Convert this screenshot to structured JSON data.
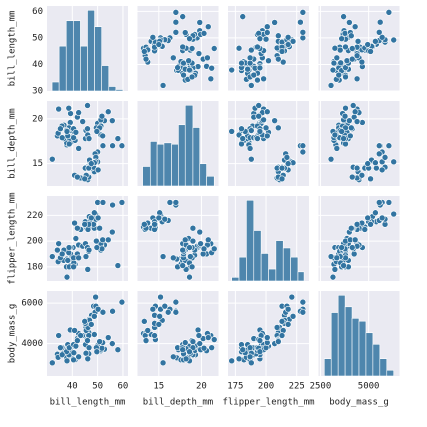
{
  "chart_data": {
    "type": "pairplot",
    "variables": [
      "bill_length_mm",
      "bill_depth_mm",
      "flipper_length_mm",
      "body_mass_g"
    ],
    "lims": [
      [
        30,
        62
      ],
      [
        12.5,
        22
      ],
      [
        169,
        235
      ],
      [
        2400,
        6600
      ]
    ],
    "xticks": [
      [
        40,
        50,
        60
      ],
      [
        15,
        20
      ],
      [
        175,
        200,
        225
      ],
      [
        2500,
        5000
      ]
    ],
    "yticks": [
      [
        30,
        40,
        50,
        60
      ],
      [
        15,
        20
      ],
      [
        180,
        200,
        220
      ],
      [
        4000,
        6000
      ]
    ],
    "color": "#3274a1",
    "grid": true,
    "histograms": [
      {
        "bins": [
          32,
          34.8,
          37.6,
          40.4,
          43.2,
          46,
          48.8,
          51.6,
          54.4,
          57.2,
          60
        ],
        "counts": [
          6,
          30,
          47,
          47,
          30,
          54,
          43,
          17,
          3,
          1
        ]
      },
      {
        "bins": [
          13.1,
          14,
          14.8,
          15.6,
          16.5,
          17.3,
          18.1,
          19,
          19.8,
          20.6,
          21.5
        ],
        "counts": [
          14,
          32,
          30,
          31,
          30,
          44,
          58,
          42,
          16,
          7
        ]
      },
      {
        "bins": [
          172,
          178,
          184,
          190,
          196,
          202,
          208,
          214,
          220,
          226,
          231
        ],
        "counts": [
          4,
          26,
          88,
          55,
          30,
          13,
          44,
          36,
          26,
          10
        ]
      },
      {
        "bins": [
          2700,
          3060,
          3420,
          3780,
          4140,
          4500,
          4860,
          5220,
          5580,
          5940,
          6300
        ],
        "counts": [
          12,
          44,
          56,
          48,
          40,
          38,
          30,
          22,
          12,
          4
        ]
      }
    ],
    "observations": [
      [
        39.1,
        18.7,
        181,
        3750
      ],
      [
        39.5,
        17.4,
        186,
        3800
      ],
      [
        40.3,
        18,
        195,
        3250
      ],
      [
        36.7,
        19.3,
        193,
        3450
      ],
      [
        39.3,
        20.6,
        190,
        3650
      ],
      [
        38.9,
        17.8,
        181,
        3625
      ],
      [
        39.2,
        19.6,
        195,
        4675
      ],
      [
        34.1,
        18.1,
        193,
        3475
      ],
      [
        42,
        20.2,
        190,
        4250
      ],
      [
        37.8,
        17.1,
        186,
        3300
      ],
      [
        37.8,
        17.3,
        180,
        3700
      ],
      [
        41.1,
        17.6,
        182,
        3200
      ],
      [
        38.6,
        21.2,
        191,
        3800
      ],
      [
        34.6,
        21.1,
        198,
        4400
      ],
      [
        36.6,
        17.8,
        185,
        3700
      ],
      [
        38.7,
        19,
        195,
        3450
      ],
      [
        42.5,
        20.7,
        197,
        4500
      ],
      [
        34.4,
        18.4,
        184,
        3325
      ],
      [
        46,
        21.5,
        194,
        4200
      ],
      [
        37.7,
        18.7,
        180,
        3600
      ],
      [
        35.9,
        19.2,
        189,
        3800
      ],
      [
        38.2,
        18.1,
        185,
        3950
      ],
      [
        38.8,
        17.2,
        180,
        3800
      ],
      [
        35.3,
        18.9,
        187,
        3800
      ],
      [
        40.6,
        18.6,
        183,
        3550
      ],
      [
        40.5,
        17.9,
        187,
        3200
      ],
      [
        37.9,
        18.6,
        172,
        3150
      ],
      [
        40.5,
        18.9,
        180,
        3950
      ],
      [
        32.1,
        15.5,
        188,
        3050
      ],
      [
        41.4,
        18.5,
        202,
        3875
      ],
      [
        44.1,
        19.7,
        196,
        4400
      ],
      [
        36,
        17.9,
        190,
        3450
      ],
      [
        46.1,
        13.2,
        211,
        4500
      ],
      [
        50,
        16.3,
        230,
        5700
      ],
      [
        48.7,
        14.1,
        210,
        4450
      ],
      [
        50,
        15.2,
        218,
        5700
      ],
      [
        47.6,
        14.5,
        215,
        5400
      ],
      [
        46.5,
        13.5,
        210,
        4550
      ],
      [
        45.4,
        14.6,
        211,
        4800
      ],
      [
        46.7,
        15.3,
        219,
        5200
      ],
      [
        43.3,
        13.4,
        209,
        4400
      ],
      [
        46.8,
        15.4,
        215,
        5150
      ],
      [
        40.9,
        13.7,
        214,
        4650
      ],
      [
        49,
        16.1,
        216,
        5550
      ],
      [
        45.5,
        13.7,
        214,
        4650
      ],
      [
        48.4,
        14.6,
        213,
        5850
      ],
      [
        45.8,
        14.6,
        210,
        4200
      ],
      [
        49.3,
        15.7,
        217,
        5850
      ],
      [
        42,
        13.5,
        210,
        4150
      ],
      [
        49.2,
        15.2,
        221,
        6300
      ],
      [
        46.2,
        14.5,
        209,
        4800
      ],
      [
        48.7,
        15.1,
        222,
        5350
      ],
      [
        50.2,
        14.3,
        218,
        5700
      ],
      [
        45.1,
        14.5,
        215,
        5000
      ],
      [
        46.5,
        14.5,
        213,
        4400
      ],
      [
        59.6,
        17,
        230,
        6050
      ],
      [
        55.9,
        17,
        228,
        5600
      ],
      [
        52.1,
        17,
        230,
        5550
      ],
      [
        47.5,
        15,
        218,
        4950
      ],
      [
        44.9,
        13.3,
        213,
        5100
      ],
      [
        46.5,
        17.9,
        192,
        3500
      ],
      [
        50,
        19.5,
        196,
        3900
      ],
      [
        51.3,
        19.2,
        193,
        3650
      ],
      [
        45.4,
        18.7,
        188,
        3525
      ],
      [
        52.7,
        19.8,
        197,
        3725
      ],
      [
        45.2,
        17.8,
        198,
        3950
      ],
      [
        46.1,
        18.2,
        178,
        3250
      ],
      [
        51.3,
        18.2,
        197,
        3750
      ],
      [
        46,
        18.9,
        195,
        4150
      ],
      [
        51.3,
        19.9,
        198,
        3700
      ],
      [
        46.6,
        17.8,
        193,
        3800
      ],
      [
        51.7,
        20.3,
        194,
        3775
      ],
      [
        58,
        17.8,
        181,
        3700
      ],
      [
        49.5,
        19,
        200,
        3800
      ],
      [
        52,
        18.1,
        201,
        4050
      ],
      [
        54.2,
        20.8,
        201,
        4300
      ],
      [
        42.5,
        16.7,
        187,
        3350
      ],
      [
        55.8,
        19.8,
        207,
        4000
      ],
      [
        50.8,
        19,
        210,
        4100
      ],
      [
        49.7,
        18.6,
        195,
        3600
      ]
    ]
  }
}
